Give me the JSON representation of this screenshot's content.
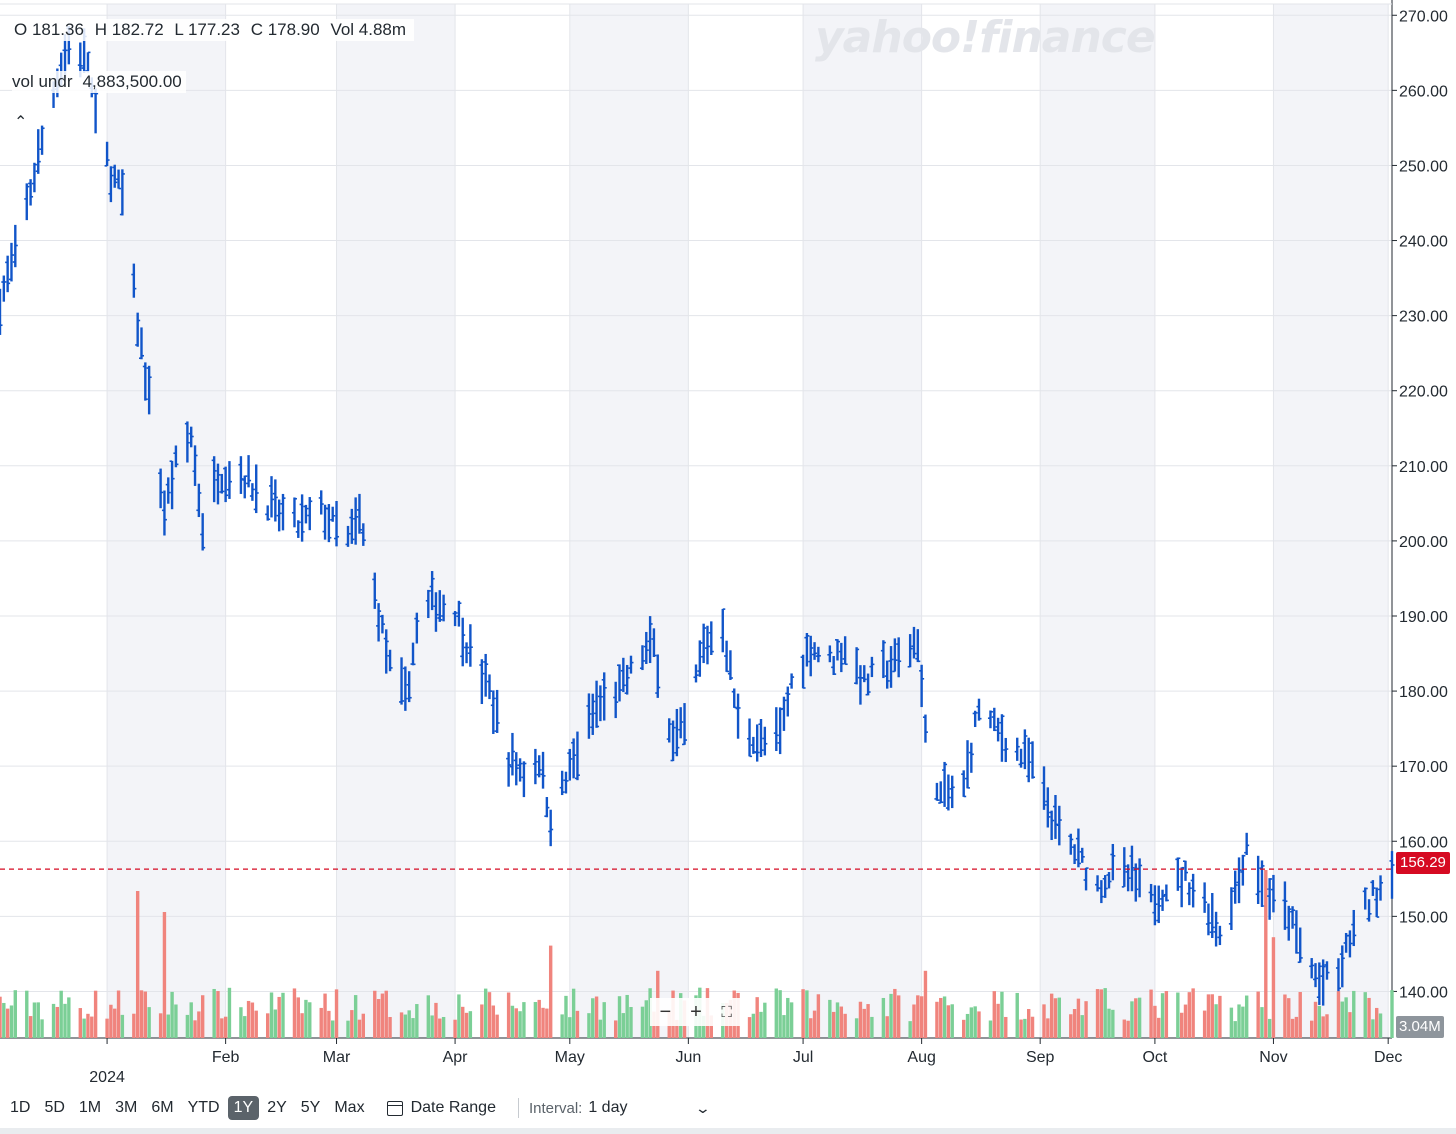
{
  "watermark": "yahoo!finance",
  "ohlc": {
    "open": "O 181.36",
    "high": "H 182.72",
    "low": "L 177.23",
    "close": "C 178.90",
    "volume": "Vol 4.88m"
  },
  "volume_legend": {
    "label": "vol undr",
    "value": "4,883,500.00"
  },
  "collapse_icon": "caret-up",
  "last_price_tag": "156.29",
  "volume_tag": "3.04M",
  "zoom": {
    "minus": "−",
    "plus": "+",
    "fullscreen": "⛶"
  },
  "toolbar": {
    "ranges": [
      "1D",
      "5D",
      "1M",
      "3M",
      "6M",
      "YTD",
      "1Y",
      "2Y",
      "5Y",
      "Max"
    ],
    "active_range": "1Y",
    "date_range_label": "Date Range",
    "interval_label": "Interval:",
    "interval_value": "1 day"
  },
  "colors": {
    "price": "#1155c9",
    "up_volume": "#7bcf96",
    "down_volume": "#f0847d",
    "last_price": "#d60a22",
    "shade": "#f3f4f8"
  },
  "chart_data": {
    "type": "ohlc",
    "y_ticks": [
      270,
      260,
      250,
      240,
      230,
      220,
      210,
      200,
      190,
      180,
      170,
      160,
      150,
      140
    ],
    "y_tick_labels": [
      "270.00",
      "260.00",
      "250.00",
      "240.00",
      "230.00",
      "220.00",
      "210.00",
      "200.00",
      "190.00",
      "180.00",
      "170.00",
      "160.00",
      "150.00",
      "140.00"
    ],
    "ylim": [
      133.8,
      271.5
    ],
    "x_labels": [
      {
        "label": "2024",
        "date": "2024-01-01",
        "sub": true
      },
      {
        "label": "Feb",
        "date": "2024-02-01"
      },
      {
        "label": "Mar",
        "date": "2024-03-01"
      },
      {
        "label": "Apr",
        "date": "2024-04-01"
      },
      {
        "label": "May",
        "date": "2024-05-01"
      },
      {
        "label": "Jun",
        "date": "2024-06-01"
      },
      {
        "label": "Jul",
        "date": "2024-07-01"
      },
      {
        "label": "Aug",
        "date": "2024-08-01"
      },
      {
        "label": "Sep",
        "date": "2024-09-01"
      },
      {
        "label": "Oct",
        "date": "2024-10-01"
      },
      {
        "label": "Nov",
        "date": "2024-11-01"
      },
      {
        "label": "Dec",
        "date": "2024-12-01"
      }
    ],
    "xlim": [
      "2023-12-04",
      "2024-12-02"
    ],
    "last_price_line": 156.29,
    "price_keypoints": [
      [
        "2023-12-04",
        232
      ],
      [
        "2023-12-08",
        238
      ],
      [
        "2023-12-13",
        249
      ],
      [
        "2023-12-19",
        262
      ],
      [
        "2023-12-22",
        266
      ],
      [
        "2023-12-27",
        264
      ],
      [
        "2023-12-29",
        256
      ],
      [
        "2024-01-02",
        249
      ],
      [
        "2024-01-05",
        246
      ],
      [
        "2024-01-09",
        229
      ],
      [
        "2024-01-12",
        219
      ],
      [
        "2024-01-16",
        204
      ],
      [
        "2024-01-19",
        210
      ],
      [
        "2024-01-23",
        214
      ],
      [
        "2024-01-26",
        202
      ],
      [
        "2024-01-30",
        209
      ],
      [
        "2024-02-05",
        209
      ],
      [
        "2024-02-09",
        207
      ],
      [
        "2024-02-14",
        204
      ],
      [
        "2024-02-20",
        202
      ],
      [
        "2024-02-26",
        204
      ],
      [
        "2024-03-04",
        200
      ],
      [
        "2024-03-07",
        203
      ],
      [
        "2024-03-11",
        193
      ],
      [
        "2024-03-15",
        183
      ],
      [
        "2024-03-19",
        179
      ],
      [
        "2024-03-22",
        188
      ],
      [
        "2024-03-26",
        192
      ],
      [
        "2024-04-01",
        191
      ],
      [
        "2024-04-05",
        185
      ],
      [
        "2024-04-10",
        180
      ],
      [
        "2024-04-15",
        171
      ],
      [
        "2024-04-19",
        169
      ],
      [
        "2024-04-23",
        171
      ],
      [
        "2024-04-26",
        163
      ],
      [
        "2024-04-30",
        168
      ],
      [
        "2024-05-03",
        172
      ],
      [
        "2024-05-08",
        178
      ],
      [
        "2024-05-14",
        180
      ],
      [
        "2024-05-20",
        185
      ],
      [
        "2024-05-23",
        186
      ],
      [
        "2024-05-28",
        173
      ],
      [
        "2024-05-31",
        175
      ],
      [
        "2024-06-05",
        186
      ],
      [
        "2024-06-10",
        189
      ],
      [
        "2024-06-14",
        176
      ],
      [
        "2024-06-20",
        173
      ],
      [
        "2024-06-25",
        174
      ],
      [
        "2024-06-28",
        181
      ],
      [
        "2024-07-03",
        186
      ],
      [
        "2024-07-08",
        184
      ],
      [
        "2024-07-12",
        186
      ],
      [
        "2024-07-17",
        181
      ],
      [
        "2024-07-22",
        183
      ],
      [
        "2024-07-26",
        184
      ],
      [
        "2024-07-31",
        187
      ],
      [
        "2024-08-02",
        174
      ],
      [
        "2024-08-06",
        166
      ],
      [
        "2024-08-12",
        167
      ],
      [
        "2024-08-16",
        178
      ],
      [
        "2024-08-20",
        175
      ],
      [
        "2024-08-26",
        172
      ],
      [
        "2024-08-30",
        170
      ],
      [
        "2024-09-05",
        162
      ],
      [
        "2024-09-11",
        158
      ],
      [
        "2024-09-16",
        154
      ],
      [
        "2024-09-20",
        156
      ],
      [
        "2024-09-25",
        155
      ],
      [
        "2024-09-30",
        152
      ],
      [
        "2024-10-04",
        154
      ],
      [
        "2024-10-09",
        155
      ],
      [
        "2024-10-14",
        152
      ],
      [
        "2024-10-18",
        148
      ],
      [
        "2024-10-23",
        155
      ],
      [
        "2024-10-25",
        160
      ],
      [
        "2024-10-29",
        154
      ],
      [
        "2024-11-01",
        152
      ],
      [
        "2024-11-05",
        150
      ],
      [
        "2024-11-08",
        146
      ],
      [
        "2024-11-13",
        141
      ],
      [
        "2024-11-18",
        142
      ],
      [
        "2024-11-21",
        147
      ],
      [
        "2024-11-25",
        151
      ],
      [
        "2024-11-29",
        154
      ],
      [
        "2024-12-02",
        157
      ]
    ],
    "volume_max_millions": 20,
    "volume_spikes": [
      [
        "2024-01-09",
        17.5
      ],
      [
        "2024-01-16",
        15.0
      ],
      [
        "2024-04-26",
        11.0
      ],
      [
        "2024-05-24",
        8.0
      ],
      [
        "2024-08-02",
        8.0
      ],
      [
        "2024-10-30",
        20.0
      ],
      [
        "2024-11-01",
        12.0
      ]
    ]
  }
}
